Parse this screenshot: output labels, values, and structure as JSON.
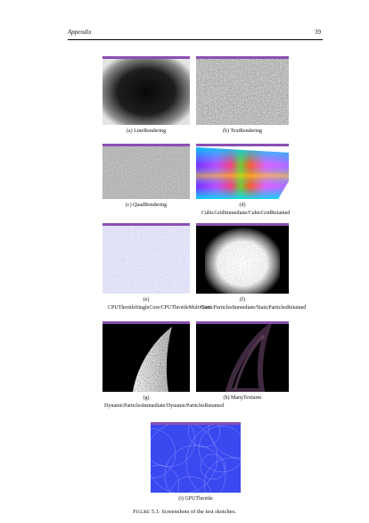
{
  "header": {
    "left": "Appendix",
    "right": "39"
  },
  "subfigures": [
    {
      "caption": "(a) LineRendering"
    },
    {
      "caption": "(b) TextRendering"
    },
    {
      "caption": "(c) QuadRendering"
    },
    {
      "caption": "(d) CubicGridImmediate/CubicGridRetained"
    },
    {
      "caption": "(e) CPUThrottleSingleCore/CPUThrottleMultiCore"
    },
    {
      "caption": "(f) StaticParticlesImmediate/StaticParticlesRetained"
    },
    {
      "caption": "(g) DynamicParticlesImmediate/DynamicParticlesRetamed"
    },
    {
      "caption": "(h) ManyTextures"
    },
    {
      "caption": "(i) GPUThrottle"
    }
  ],
  "figure": {
    "label": "Figure 5.1:",
    "text": "Screenshots of the test sketches."
  }
}
